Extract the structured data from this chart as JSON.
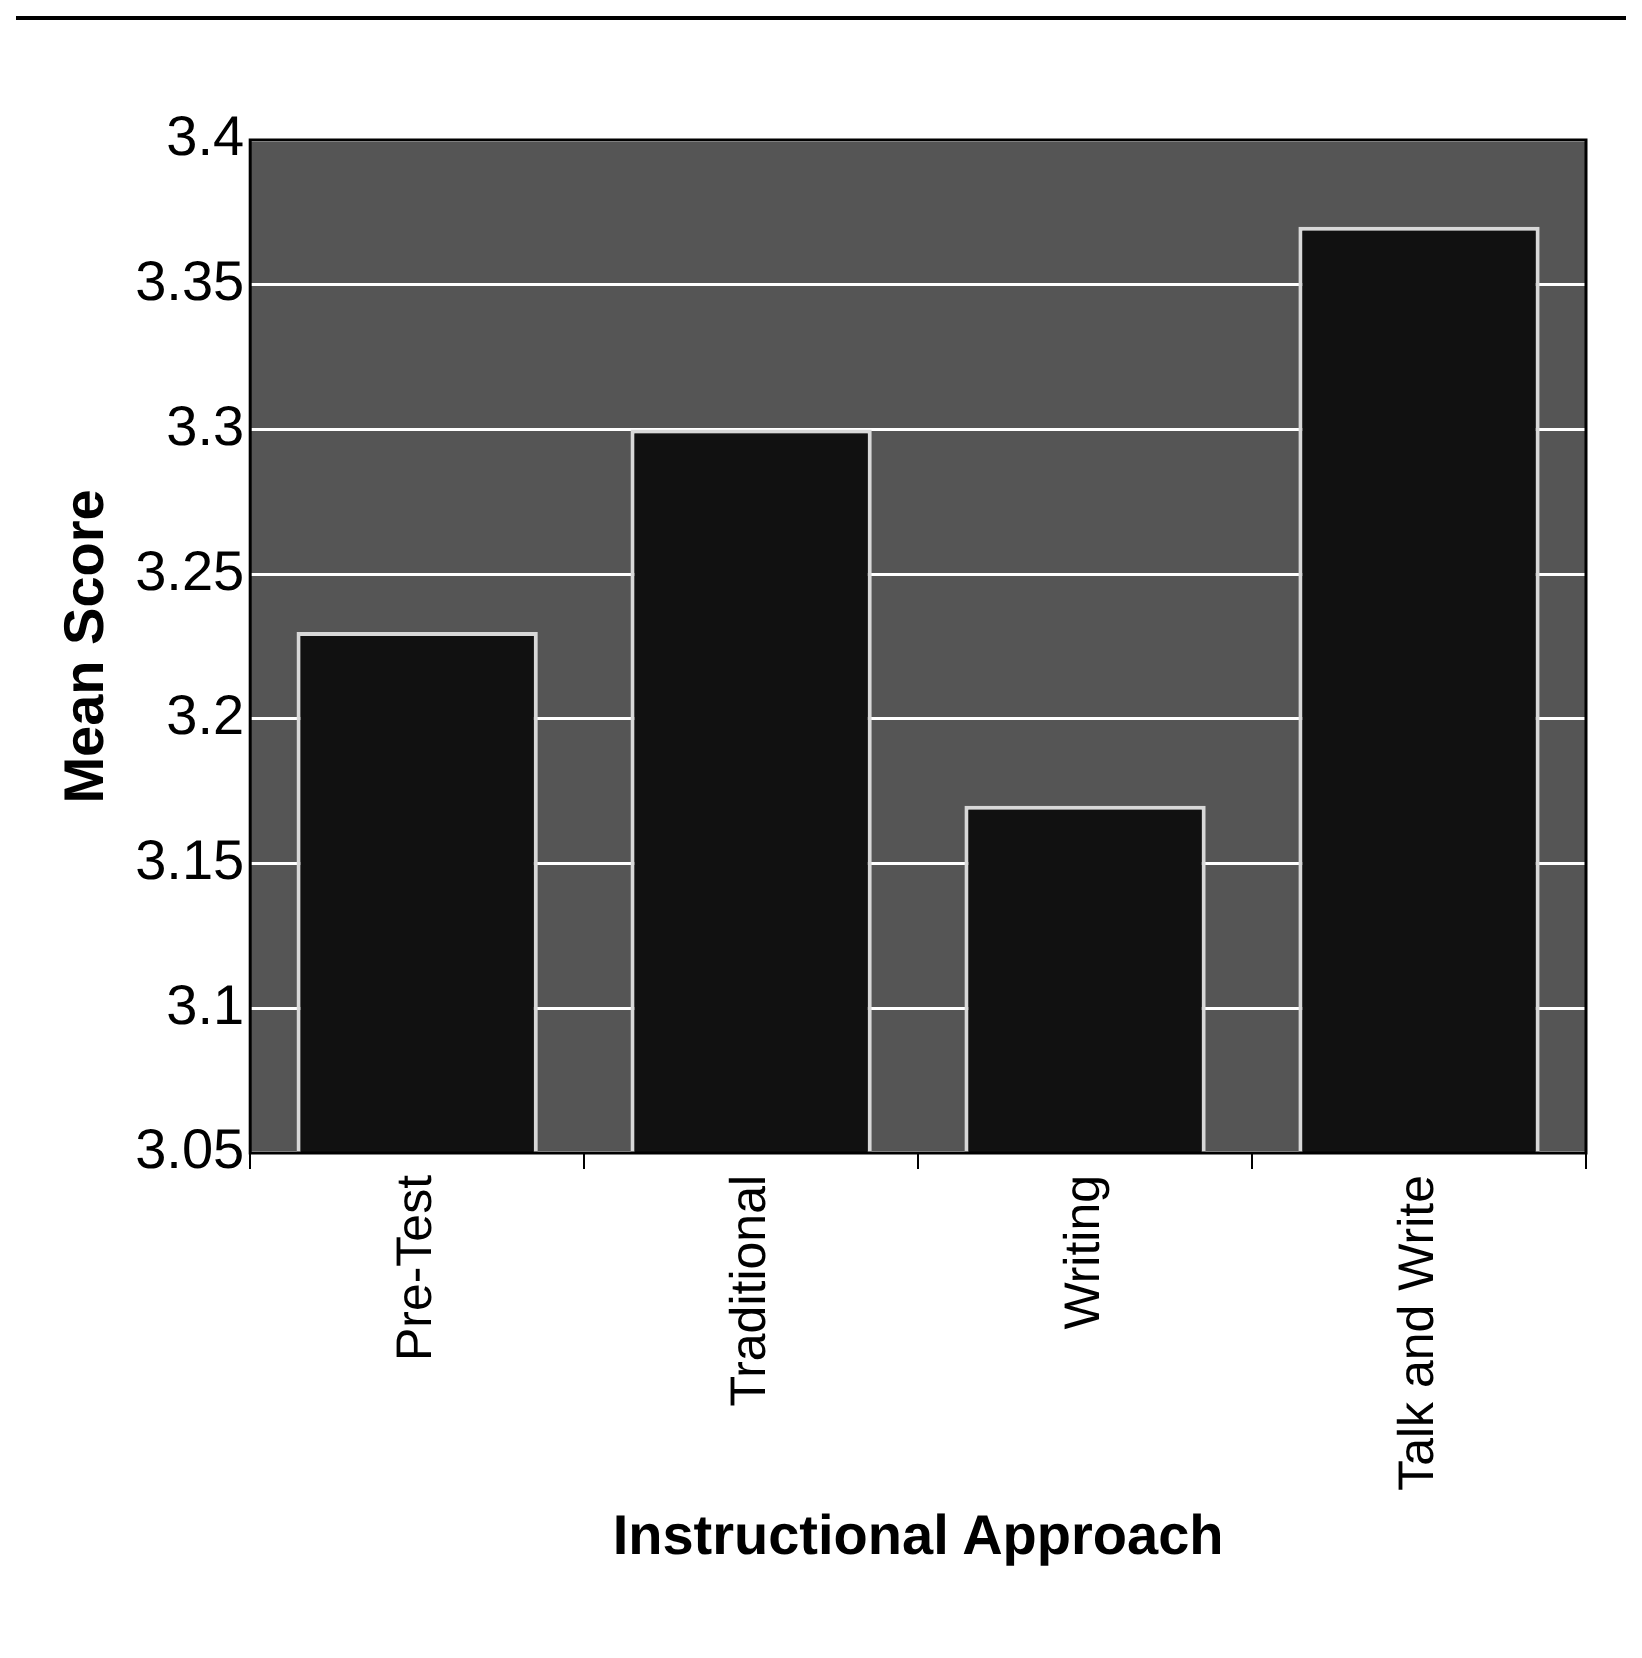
{
  "chart_data": {
    "type": "bar",
    "xlabel": "Instructional Approach",
    "ylabel": "Mean Score",
    "categories": [
      "Pre-Test",
      "Traditional",
      "Writing",
      "Talk and Write"
    ],
    "values": [
      3.23,
      3.3,
      3.17,
      3.37
    ],
    "color": "#111111",
    "ylim": [
      3.05,
      3.4
    ],
    "yticks": [
      3.05,
      3.1,
      3.15,
      3.2,
      3.25,
      3.3,
      3.35,
      3.4
    ],
    "grid": "y",
    "legend": false
  }
}
